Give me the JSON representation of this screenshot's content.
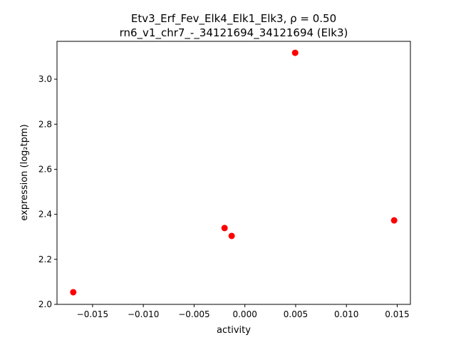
{
  "chart_data": {
    "type": "scatter",
    "title_line1": "Etv3_Erf_Fev_Elk4_Elk1_Elk3, ρ = 0.50",
    "title_line2": "rn6_v1_chr7_-_34121694_34121694 (Elk3)",
    "xlabel": "activity",
    "ylabel": "expression (log₂tpm)",
    "xlim": [
      -0.0185,
      0.0163
    ],
    "ylim": [
      2.0,
      3.168
    ],
    "xticks": [
      -0.015,
      -0.01,
      -0.005,
      0.0,
      0.005,
      0.01,
      0.015
    ],
    "xtick_labels": [
      "−0.015",
      "−0.010",
      "−0.005",
      "0.000",
      "0.005",
      "0.010",
      "0.015"
    ],
    "yticks": [
      2.0,
      2.2,
      2.4,
      2.6,
      2.8,
      3.0
    ],
    "ytick_labels": [
      "2.0",
      "2.2",
      "2.4",
      "2.6",
      "2.8",
      "3.0"
    ],
    "grid": false,
    "marker_color": "#ff0000",
    "points": [
      {
        "x": -0.0169,
        "y": 2.054
      },
      {
        "x": -0.002,
        "y": 2.339
      },
      {
        "x": -0.0013,
        "y": 2.304
      },
      {
        "x": 0.00495,
        "y": 3.117
      },
      {
        "x": 0.0147,
        "y": 2.373
      }
    ]
  }
}
